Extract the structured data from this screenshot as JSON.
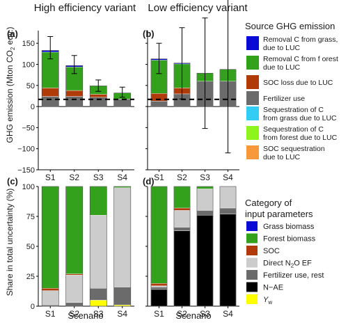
{
  "chart_data": [
    {
      "type": "bar",
      "panel": "(a)",
      "title": "High efficiency variant",
      "xlabel": "",
      "ylabel": "GHG emission (Mton CO2 eqv.)",
      "ylabel_parts": [
        "GHG emission (Mton CO",
        "2",
        " eqv.)"
      ],
      "ylim": [
        -150,
        180
      ],
      "yticks": [
        -150,
        -100,
        -50,
        0,
        50,
        100,
        150
      ],
      "categories": [
        "S1",
        "S2",
        "S3",
        "S4"
      ],
      "series": [
        {
          "name": "Removal C from grass, due to LUC",
          "values": [
            4,
            3,
            0,
            0
          ]
        },
        {
          "name": "Removal C from forest due to LUC",
          "values": [
            85,
            56,
            20,
            14
          ]
        },
        {
          "name": "SOC loss due to LUC",
          "values": [
            20,
            14,
            7,
            0
          ]
        },
        {
          "name": "Fertilizer use",
          "values": [
            24,
            24,
            22,
            18
          ]
        }
      ],
      "error_bars": [
        {
          "low": 113,
          "high": 166
        },
        {
          "low": 78,
          "high": 121
        },
        {
          "low": 36,
          "high": 63
        },
        {
          "low": 22,
          "high": 46
        }
      ],
      "reference_line": 17
    },
    {
      "type": "bar",
      "panel": "(b)",
      "title": "Low efficiency variant",
      "xlabel": "",
      "ylabel": "",
      "ylim": [
        -150,
        180
      ],
      "categories": [
        "S1",
        "S2",
        "S3",
        "S4"
      ],
      "series": [
        {
          "name": "Removal C from grass, due to LUC",
          "values": [
            3,
            2,
            0,
            0
          ]
        },
        {
          "name": "Removal C from forest due to LUC",
          "values": [
            79,
            57,
            19,
            28
          ]
        },
        {
          "name": "SOC loss due to LUC",
          "values": [
            18,
            14,
            0,
            0
          ]
        },
        {
          "name": "Fertilizer use",
          "values": [
            13,
            30,
            60,
            60
          ]
        }
      ],
      "error_bars": [
        {
          "low": 78,
          "high": 150
        },
        {
          "low": 18,
          "high": 187
        },
        {
          "low": -52,
          "high": 210
        },
        {
          "low": -110,
          "high": 280
        }
      ],
      "reference_line": 17
    },
    {
      "type": "bar",
      "panel": "(c)",
      "xlabel": "Scenario",
      "ylabel": "Share in total uncertainty (%)",
      "ylim": [
        0,
        100
      ],
      "yticks": [
        0,
        25,
        50,
        75,
        100
      ],
      "categories": [
        "S1",
        "S2",
        "S3",
        "S4"
      ],
      "series": [
        {
          "name": "Yw",
          "values": [
            0,
            0,
            5,
            1
          ]
        },
        {
          "name": "N−AE",
          "values": [
            0,
            0,
            0,
            0
          ]
        },
        {
          "name": "Fertilizer use, rest",
          "values": [
            1,
            3,
            10,
            15
          ]
        },
        {
          "name": "Direct N2O EF",
          "values": [
            12,
            23,
            61,
            83
          ]
        },
        {
          "name": "SOC",
          "values": [
            2,
            1,
            0,
            0
          ]
        },
        {
          "name": "Forest biomass",
          "values": [
            85,
            73,
            24,
            1
          ]
        },
        {
          "name": "Grass biomass",
          "values": [
            0,
            0,
            0,
            0
          ]
        }
      ]
    },
    {
      "type": "bar",
      "panel": "(d)",
      "xlabel": "Scenario",
      "ylabel": "",
      "ylim": [
        0,
        100
      ],
      "categories": [
        "S1",
        "S2",
        "S3",
        "S4"
      ],
      "series": [
        {
          "name": "Yw",
          "values": [
            0,
            0,
            0,
            0
          ]
        },
        {
          "name": "N−AE",
          "values": [
            14,
            63,
            76,
            77
          ]
        },
        {
          "name": "Fertilizer use, rest",
          "values": [
            2,
            3,
            4,
            5
          ]
        },
        {
          "name": "Direct N2O EF",
          "values": [
            1,
            14,
            18,
            18
          ]
        },
        {
          "name": "SOC",
          "values": [
            2,
            2,
            0,
            0
          ]
        },
        {
          "name": "Forest biomass",
          "values": [
            81,
            18,
            2,
            0
          ]
        },
        {
          "name": "Grass biomass",
          "values": [
            0,
            0,
            0,
            0
          ]
        }
      ]
    }
  ],
  "legend_top": {
    "title": "Source GHG emission",
    "items": [
      {
        "lines": [
          "Removal C from grass,",
          "due to LUC"
        ],
        "color": "#0a0ad6"
      },
      {
        "lines": [
          "Removal C from f orest",
          "due to LUC"
        ],
        "color": "#33a11c"
      },
      {
        "lines": [
          "SOC loss due to LUC"
        ],
        "color": "#b03a08"
      },
      {
        "lines": [
          "Fertilizer use"
        ],
        "color": "#6b6b6b"
      },
      {
        "lines": [
          "Sequestration of C",
          "from grass due to LUC"
        ],
        "color": "#33ccf5"
      },
      {
        "lines": [
          "Sequestration of C",
          "from forest due to LUC"
        ],
        "color": "#8cf51c"
      },
      {
        "lines": [
          "SOC sequestration",
          "due to LUC"
        ],
        "color": "#f7993a"
      }
    ]
  },
  "legend_bottom": {
    "title_lines": [
      "Category of",
      "input parameters"
    ],
    "items": [
      {
        "label": "Grass biomass",
        "color": "#0a0ad6"
      },
      {
        "label": "Forest biomass",
        "color": "#33a11c"
      },
      {
        "label": "SOC",
        "color": "#b03a08"
      },
      {
        "label_parts": [
          "Direct N",
          "2",
          "O EF"
        ],
        "color": "#cccccc"
      },
      {
        "label": "Fertilizer use, rest",
        "color": "#6b6b6b"
      },
      {
        "label": "N−AE",
        "color": "#000000"
      },
      {
        "label_parts": [
          "Y",
          "w",
          ""
        ],
        "color": "#ffff00"
      }
    ]
  },
  "colors": {
    "Grass": "#0a0ad6",
    "Forest": "#33a11c",
    "SOC": "#b03a08",
    "Fertilizer": "#6b6b6b",
    "DirectN2O": "#cccccc",
    "NAE": "#000000",
    "Yw": "#ffff00"
  }
}
